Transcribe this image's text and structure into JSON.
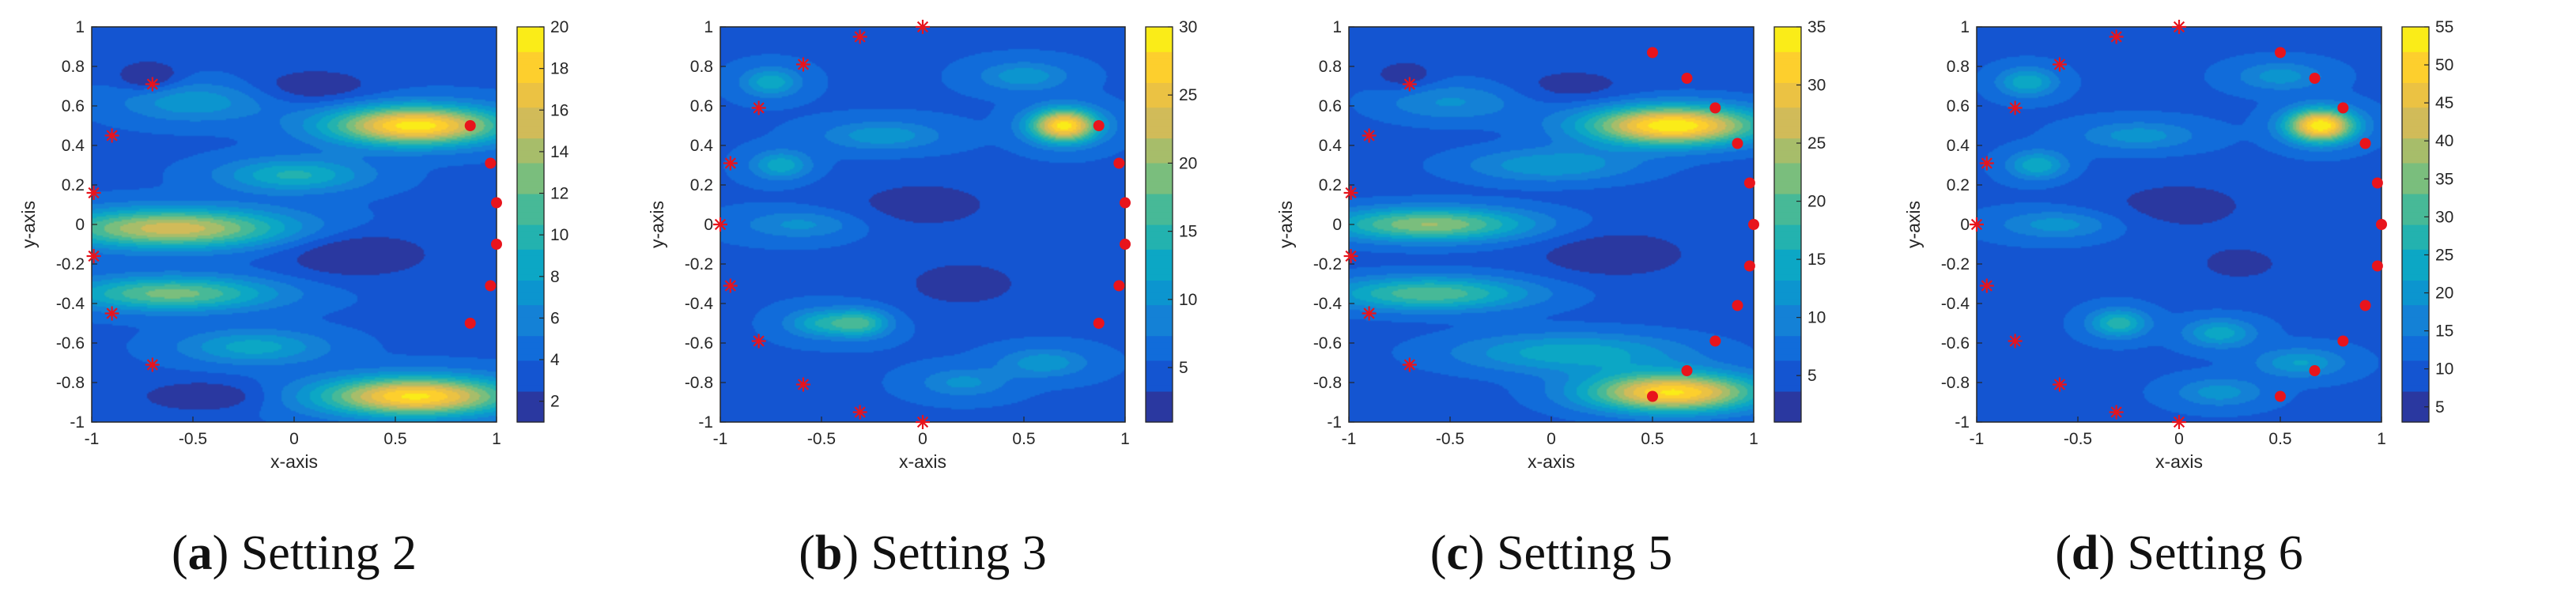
{
  "chart_data": [
    {
      "type": "contour",
      "caption": {
        "letter": "a",
        "text": "Setting 2"
      },
      "xlabel": "x-axis",
      "ylabel": "y-axis",
      "xlim": [
        -1,
        1
      ],
      "ylim": [
        -1,
        1
      ],
      "xticks": [
        "-1",
        "-0.5",
        "0",
        "0.5",
        "1"
      ],
      "yticks": [
        "-1",
        "-0.8",
        "-0.6",
        "-0.4",
        "-0.2",
        "0",
        "0.2",
        "0.4",
        "0.6",
        "0.8",
        "1"
      ],
      "colorbar": {
        "min": 1,
        "max": 20,
        "ticks": [
          "2",
          "4",
          "6",
          "8",
          "10",
          "12",
          "14",
          "16",
          "18",
          "20"
        ]
      },
      "base": 3.5,
      "blobs": [
        {
          "x": 0.6,
          "y": 0.5,
          "sx": 0.3,
          "sy": 0.07,
          "a": 16
        },
        {
          "x": 0.6,
          "y": -0.87,
          "sx": 0.33,
          "sy": 0.07,
          "a": 15.5
        },
        {
          "x": -0.6,
          "y": -0.02,
          "sx": 0.4,
          "sy": 0.07,
          "a": 12
        },
        {
          "x": -0.6,
          "y": -0.35,
          "sx": 0.35,
          "sy": 0.06,
          "a": 9
        },
        {
          "x": 0.0,
          "y": 0.25,
          "sx": 0.25,
          "sy": 0.06,
          "a": 6
        },
        {
          "x": -0.2,
          "y": -0.62,
          "sx": 0.25,
          "sy": 0.06,
          "a": 5
        },
        {
          "x": -0.5,
          "y": 0.62,
          "sx": 0.25,
          "sy": 0.07,
          "a": 4
        },
        {
          "x": -0.72,
          "y": 0.75,
          "sx": 0.1,
          "sy": 0.05,
          "a": -3.5
        },
        {
          "x": 0.3,
          "y": -0.15,
          "sx": 0.25,
          "sy": 0.08,
          "a": -3
        },
        {
          "x": 0.1,
          "y": 0.7,
          "sx": 0.2,
          "sy": 0.06,
          "a": -2.5
        },
        {
          "x": -0.45,
          "y": -0.87,
          "sx": 0.2,
          "sy": 0.05,
          "a": -3
        }
      ],
      "dots": [
        [
          0.87,
          0.5
        ],
        [
          0.97,
          0.31
        ],
        [
          1.0,
          0.11
        ],
        [
          1.0,
          -0.1
        ],
        [
          0.97,
          -0.31
        ],
        [
          0.87,
          -0.5
        ]
      ],
      "stars": [
        [
          -0.7,
          0.71
        ],
        [
          -0.9,
          0.45
        ],
        [
          -0.99,
          0.16
        ],
        [
          -0.99,
          -0.16
        ],
        [
          -0.9,
          -0.45
        ],
        [
          -0.7,
          -0.71
        ]
      ]
    },
    {
      "type": "contour",
      "caption": {
        "letter": "b",
        "text": "Setting 3"
      },
      "xlabel": "x-axis",
      "ylabel": "y-axis",
      "xlim": [
        -1,
        1
      ],
      "ylim": [
        -1,
        1
      ],
      "xticks": [
        "-1",
        "-0.5",
        "0",
        "0.5",
        "1"
      ],
      "yticks": [
        "-1",
        "-0.8",
        "-0.6",
        "-0.4",
        "-0.2",
        "0",
        "0.2",
        "0.4",
        "0.6",
        "0.8",
        "1"
      ],
      "colorbar": {
        "min": 1,
        "max": 30,
        "ticks": [
          "5",
          "10",
          "15",
          "20",
          "25",
          "30"
        ]
      },
      "base": 5,
      "blobs": [
        {
          "x": 0.7,
          "y": 0.5,
          "sx": 0.12,
          "sy": 0.06,
          "a": 24
        },
        {
          "x": -0.75,
          "y": 0.72,
          "sx": 0.1,
          "sy": 0.05,
          "a": 8
        },
        {
          "x": -0.7,
          "y": 0.3,
          "sx": 0.1,
          "sy": 0.05,
          "a": 8
        },
        {
          "x": -0.5,
          "y": -0.5,
          "sx": 0.12,
          "sy": 0.05,
          "a": 8
        },
        {
          "x": -0.3,
          "y": -0.5,
          "sx": 0.1,
          "sy": 0.05,
          "a": 10
        },
        {
          "x": -0.2,
          "y": 0.45,
          "sx": 0.2,
          "sy": 0.05,
          "a": 6
        },
        {
          "x": 0.5,
          "y": 0.75,
          "sx": 0.15,
          "sy": 0.05,
          "a": 6
        },
        {
          "x": 0.6,
          "y": -0.7,
          "sx": 0.15,
          "sy": 0.05,
          "a": 6
        },
        {
          "x": -0.6,
          "y": 0.0,
          "sx": 0.2,
          "sy": 0.05,
          "a": 5
        },
        {
          "x": 0.2,
          "y": -0.8,
          "sx": 0.15,
          "sy": 0.05,
          "a": 5
        },
        {
          "x": 0.0,
          "y": 0.1,
          "sx": 0.3,
          "sy": 0.1,
          "a": -3
        },
        {
          "x": 0.2,
          "y": -0.3,
          "sx": 0.25,
          "sy": 0.1,
          "a": -3
        }
      ],
      "dots": [
        [
          0.87,
          0.5
        ],
        [
          0.97,
          0.31
        ],
        [
          1.0,
          0.11
        ],
        [
          1.0,
          -0.1
        ],
        [
          0.97,
          -0.31
        ],
        [
          0.87,
          -0.5
        ]
      ],
      "stars": [
        [
          0.0,
          1.0
        ],
        [
          -0.31,
          0.95
        ],
        [
          -0.59,
          0.81
        ],
        [
          -0.81,
          0.59
        ],
        [
          -0.95,
          0.31
        ],
        [
          -1.0,
          0.0
        ],
        [
          -0.95,
          -0.31
        ],
        [
          -0.81,
          -0.59
        ],
        [
          -0.59,
          -0.81
        ],
        [
          -0.31,
          -0.95
        ],
        [
          0.0,
          -1.0
        ]
      ]
    },
    {
      "type": "contour",
      "caption": {
        "letter": "c",
        "text": "Setting 5"
      },
      "xlabel": "x-axis",
      "ylabel": "y-axis",
      "xlim": [
        -1,
        1
      ],
      "ylim": [
        -1,
        1
      ],
      "xticks": [
        "-1",
        "-0.5",
        "0",
        "0.5",
        "1"
      ],
      "yticks": [
        "-1",
        "-0.8",
        "-0.6",
        "-0.4",
        "-0.2",
        "0",
        "0.2",
        "0.4",
        "0.6",
        "0.8",
        "1"
      ],
      "colorbar": {
        "min": 1,
        "max": 35,
        "ticks": [
          "5",
          "10",
          "15",
          "20",
          "25",
          "30",
          "35"
        ]
      },
      "base": 5,
      "blobs": [
        {
          "x": 0.6,
          "y": 0.5,
          "sx": 0.3,
          "sy": 0.07,
          "a": 30
        },
        {
          "x": 0.6,
          "y": -0.85,
          "sx": 0.3,
          "sy": 0.07,
          "a": 28
        },
        {
          "x": -0.6,
          "y": 0.0,
          "sx": 0.35,
          "sy": 0.06,
          "a": 18
        },
        {
          "x": -0.6,
          "y": -0.35,
          "sx": 0.35,
          "sy": 0.06,
          "a": 15
        },
        {
          "x": 0.0,
          "y": 0.3,
          "sx": 0.3,
          "sy": 0.06,
          "a": 8
        },
        {
          "x": 0.1,
          "y": -0.65,
          "sx": 0.4,
          "sy": 0.07,
          "a": 10
        },
        {
          "x": -0.5,
          "y": 0.62,
          "sx": 0.25,
          "sy": 0.07,
          "a": 6
        },
        {
          "x": -0.72,
          "y": 0.75,
          "sx": 0.1,
          "sy": 0.05,
          "a": -4
        },
        {
          "x": 0.3,
          "y": -0.15,
          "sx": 0.25,
          "sy": 0.08,
          "a": -4
        },
        {
          "x": 0.1,
          "y": 0.7,
          "sx": 0.2,
          "sy": 0.06,
          "a": -3
        }
      ],
      "dots": [
        [
          0.5,
          0.87
        ],
        [
          0.67,
          0.74
        ],
        [
          0.81,
          0.59
        ],
        [
          0.92,
          0.41
        ],
        [
          0.98,
          0.21
        ],
        [
          1.0,
          0.0
        ],
        [
          0.98,
          -0.21
        ],
        [
          0.92,
          -0.41
        ],
        [
          0.81,
          -0.59
        ],
        [
          0.67,
          -0.74
        ],
        [
          0.5,
          -0.87
        ]
      ],
      "stars": [
        [
          -0.7,
          0.71
        ],
        [
          -0.9,
          0.45
        ],
        [
          -0.99,
          0.16
        ],
        [
          -0.99,
          -0.16
        ],
        [
          -0.9,
          -0.45
        ],
        [
          -0.7,
          -0.71
        ]
      ]
    },
    {
      "type": "contour",
      "caption": {
        "letter": "d",
        "text": "Setting 6"
      },
      "xlabel": "x-axis",
      "ylabel": "y-axis",
      "xlim": [
        -1,
        1
      ],
      "ylim": [
        -1,
        1
      ],
      "xticks": [
        "-1",
        "-0.5",
        "0",
        "0.5",
        "1"
      ],
      "yticks": [
        "-1",
        "-0.8",
        "-0.6",
        "-0.4",
        "-0.2",
        "0",
        "0.2",
        "0.4",
        "0.6",
        "0.8",
        "1"
      ],
      "colorbar": {
        "min": 3,
        "max": 55,
        "ticks": [
          "5",
          "10",
          "15",
          "20",
          "25",
          "30",
          "35",
          "40",
          "45",
          "50",
          "55"
        ]
      },
      "base": 10,
      "blobs": [
        {
          "x": 0.7,
          "y": 0.5,
          "sx": 0.12,
          "sy": 0.06,
          "a": 45
        },
        {
          "x": -0.75,
          "y": 0.72,
          "sx": 0.1,
          "sy": 0.05,
          "a": 15
        },
        {
          "x": -0.7,
          "y": 0.3,
          "sx": 0.1,
          "sy": 0.05,
          "a": 15
        },
        {
          "x": -0.3,
          "y": -0.5,
          "sx": 0.1,
          "sy": 0.05,
          "a": 18
        },
        {
          "x": 0.2,
          "y": -0.55,
          "sx": 0.12,
          "sy": 0.05,
          "a": 14
        },
        {
          "x": -0.2,
          "y": 0.45,
          "sx": 0.2,
          "sy": 0.05,
          "a": 10
        },
        {
          "x": 0.5,
          "y": 0.75,
          "sx": 0.15,
          "sy": 0.05,
          "a": 10
        },
        {
          "x": 0.6,
          "y": -0.7,
          "sx": 0.15,
          "sy": 0.05,
          "a": 12
        },
        {
          "x": -0.6,
          "y": 0.0,
          "sx": 0.2,
          "sy": 0.05,
          "a": 10
        },
        {
          "x": 0.2,
          "y": -0.85,
          "sx": 0.15,
          "sy": 0.05,
          "a": 10
        },
        {
          "x": 0.0,
          "y": 0.1,
          "sx": 0.3,
          "sy": 0.1,
          "a": -5
        },
        {
          "x": 0.3,
          "y": -0.2,
          "sx": 0.25,
          "sy": 0.1,
          "a": -4
        }
      ],
      "dots": [
        [
          0.5,
          0.87
        ],
        [
          0.67,
          0.74
        ],
        [
          0.81,
          0.59
        ],
        [
          0.92,
          0.41
        ],
        [
          0.98,
          0.21
        ],
        [
          1.0,
          0.0
        ],
        [
          0.98,
          -0.21
        ],
        [
          0.92,
          -0.41
        ],
        [
          0.81,
          -0.59
        ],
        [
          0.67,
          -0.74
        ],
        [
          0.5,
          -0.87
        ]
      ],
      "stars": [
        [
          0.0,
          1.0
        ],
        [
          -0.31,
          0.95
        ],
        [
          -0.59,
          0.81
        ],
        [
          -0.81,
          0.59
        ],
        [
          -0.95,
          0.31
        ],
        [
          -1.0,
          0.0
        ],
        [
          -0.95,
          -0.31
        ],
        [
          -0.81,
          -0.59
        ],
        [
          -0.59,
          -0.81
        ],
        [
          -0.31,
          -0.95
        ],
        [
          0.0,
          -1.0
        ]
      ]
    }
  ],
  "colors": {
    "marker": "#e8141c",
    "parula": [
      "#352a87",
      "#0f5cdd",
      "#1481d6",
      "#06a4ca",
      "#2eb7a4",
      "#87bf77",
      "#d1bb59",
      "#fec832",
      "#f9fb0e"
    ]
  }
}
